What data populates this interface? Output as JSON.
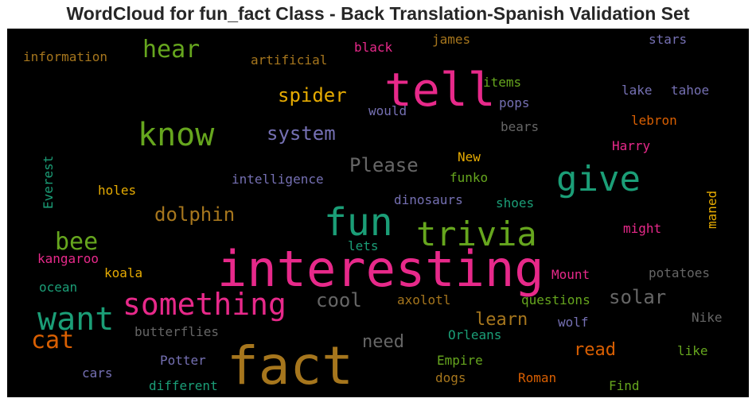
{
  "title": "WordCloud for fun_fact Class - Back Translation-Spanish Validation Set",
  "words": [
    {
      "text": "fact",
      "color": "#a6761d"
    },
    {
      "text": "interesting",
      "color": "#e7298a"
    },
    {
      "text": "tell",
      "color": "#e7298a"
    },
    {
      "text": "fun",
      "color": "#1b9e77"
    },
    {
      "text": "something",
      "color": "#e7298a"
    },
    {
      "text": "know",
      "color": "#66a61e"
    },
    {
      "text": "trivia",
      "color": "#66a61e"
    },
    {
      "text": "give",
      "color": "#1b9e77"
    },
    {
      "text": "want",
      "color": "#1b9e77"
    },
    {
      "text": "cat",
      "color": "#d95f02"
    },
    {
      "text": "bee",
      "color": "#66a61e"
    },
    {
      "text": "hear",
      "color": "#66a61e"
    },
    {
      "text": "dolphin",
      "color": "#a6761d"
    },
    {
      "text": "system",
      "color": "#7570b3"
    },
    {
      "text": "spider",
      "color": "#e6ab02"
    },
    {
      "text": "Please",
      "color": "#666666"
    },
    {
      "text": "solar",
      "color": "#666666"
    },
    {
      "text": "cool",
      "color": "#666666"
    },
    {
      "text": "learn",
      "color": "#a6761d"
    },
    {
      "text": "need",
      "color": "#666666"
    },
    {
      "text": "read",
      "color": "#d95f02"
    },
    {
      "text": "information",
      "color": "#a6761d"
    },
    {
      "text": "artificial",
      "color": "#a6761d"
    },
    {
      "text": "black",
      "color": "#e7298a"
    },
    {
      "text": "james",
      "color": "#a6761d"
    },
    {
      "text": "stars",
      "color": "#7570b3"
    },
    {
      "text": "items",
      "color": "#66a61e"
    },
    {
      "text": "lake",
      "color": "#7570b3"
    },
    {
      "text": "tahoe",
      "color": "#7570b3"
    },
    {
      "text": "pops",
      "color": "#7570b3"
    },
    {
      "text": "would",
      "color": "#7570b3"
    },
    {
      "text": "Everest",
      "color": "#1b9e77"
    },
    {
      "text": "lebron",
      "color": "#d95f02"
    },
    {
      "text": "bears",
      "color": "#666666"
    },
    {
      "text": "Harry",
      "color": "#e7298a"
    },
    {
      "text": "New",
      "color": "#e6ab02"
    },
    {
      "text": "maned",
      "color": "#e6ab02"
    },
    {
      "text": "funko",
      "color": "#66a61e"
    },
    {
      "text": "intelligence",
      "color": "#7570b3"
    },
    {
      "text": "holes",
      "color": "#e6ab02"
    },
    {
      "text": "dinosaurs",
      "color": "#7570b3"
    },
    {
      "text": "shoes",
      "color": "#1b9e77"
    },
    {
      "text": "might",
      "color": "#e7298a"
    },
    {
      "text": "lets",
      "color": "#1b9e77"
    },
    {
      "text": "kangaroo",
      "color": "#e7298a"
    },
    {
      "text": "koala",
      "color": "#e6ab02"
    },
    {
      "text": "Mount",
      "color": "#e7298a"
    },
    {
      "text": "potatoes",
      "color": "#666666"
    },
    {
      "text": "ocean",
      "color": "#1b9e77"
    },
    {
      "text": "axolotl",
      "color": "#a6761d"
    },
    {
      "text": "questions",
      "color": "#66a61e"
    },
    {
      "text": "Nike",
      "color": "#666666"
    },
    {
      "text": "butterflies",
      "color": "#666666"
    },
    {
      "text": "wolf",
      "color": "#7570b3"
    },
    {
      "text": "Orleans",
      "color": "#1b9e77"
    },
    {
      "text": "like",
      "color": "#66a61e"
    },
    {
      "text": "Potter",
      "color": "#7570b3"
    },
    {
      "text": "Empire",
      "color": "#66a61e"
    },
    {
      "text": "cars",
      "color": "#7570b3"
    },
    {
      "text": "dogs",
      "color": "#a6761d"
    },
    {
      "text": "Roman",
      "color": "#d95f02"
    },
    {
      "text": "different",
      "color": "#1b9e77"
    },
    {
      "text": "Find",
      "color": "#66a61e"
    }
  ]
}
